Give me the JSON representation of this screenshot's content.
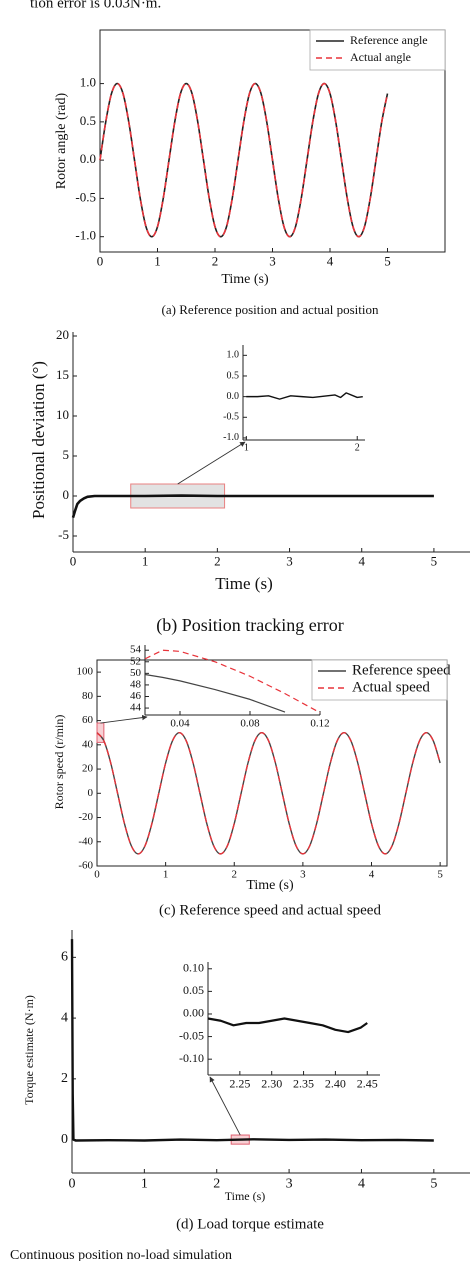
{
  "header_text": "tion error is 0.03N·m.",
  "footer_text": "Continuous position no-load simulation",
  "chart_data": [
    {
      "type": "line",
      "caption": "(a) Reference position and actual position",
      "xlabel": "Time (s)",
      "ylabel": "Rotor angle (rad)",
      "xlim": [
        0,
        6
      ],
      "ylim": [
        -1.2,
        1.7
      ],
      "xticks": [
        0,
        1,
        2,
        3,
        4,
        5
      ],
      "yticks": [
        {
          "value": -1,
          "label": "-1.0"
        },
        {
          "value": -0.5,
          "label": "-0.5"
        },
        {
          "value": 0,
          "label": "0.0"
        },
        {
          "value": 0.5,
          "label": "0.5"
        },
        {
          "value": 1,
          "label": "1.0"
        }
      ],
      "legend": "upper right",
      "x": [
        0,
        0.1,
        0.2,
        0.3,
        0.4,
        0.5,
        0.6,
        0.7,
        0.8,
        0.9,
        1,
        1.1,
        1.2,
        1.3,
        1.4,
        1.5,
        1.6,
        1.7,
        1.8,
        1.9,
        2,
        2.1,
        2.2,
        2.3,
        2.4,
        2.5,
        2.6,
        2.7,
        2.8,
        2.9,
        3,
        3.1,
        3.2,
        3.3,
        3.4,
        3.5,
        3.6,
        3.7,
        3.8,
        3.9,
        4,
        4.1,
        4.2,
        4.3,
        4.4,
        4.5,
        4.6,
        4.7,
        4.8,
        4.9,
        5
      ],
      "series": [
        {
          "name": "Reference angle",
          "color": "#222222",
          "dash": false,
          "values": [
            0,
            0.5,
            0.87,
            1,
            0.87,
            0.5,
            0,
            -0.5,
            -0.87,
            -1,
            -0.87,
            -0.5,
            0,
            0.5,
            0.87,
            1,
            0.87,
            0.5,
            0,
            -0.5,
            -0.87,
            -1,
            -0.87,
            -0.5,
            0,
            0.5,
            0.87,
            1,
            0.87,
            0.5,
            0,
            -0.5,
            -0.87,
            -1,
            -0.87,
            -0.5,
            0,
            0.5,
            0.87,
            1,
            0.87,
            0.5,
            0,
            -0.5,
            -0.87,
            -1,
            -0.87,
            -0.5,
            0,
            0.5,
            0.87
          ]
        },
        {
          "name": "Actual angle",
          "color": "#e8333a",
          "dash": true,
          "values": [
            0,
            0.5,
            0.87,
            1,
            0.87,
            0.5,
            0,
            -0.5,
            -0.87,
            -1,
            -0.87,
            -0.5,
            0,
            0.5,
            0.87,
            1,
            0.87,
            0.5,
            0,
            -0.5,
            -0.87,
            -1,
            -0.87,
            -0.5,
            0,
            0.5,
            0.87,
            1,
            0.87,
            0.5,
            0,
            -0.5,
            -0.87,
            -1,
            -0.87,
            -0.5,
            0,
            0.5,
            0.87,
            1,
            0.87,
            0.5,
            0,
            -0.5,
            -0.87,
            -1,
            -0.87,
            -0.5,
            0,
            0.5,
            0.87
          ]
        }
      ]
    },
    {
      "type": "line",
      "caption": "(b) Position tracking error",
      "xlabel": "Time (s)",
      "ylabel": "Positional deviation (°)",
      "xlim": [
        0,
        5.5
      ],
      "ylim": [
        -7,
        20.5
      ],
      "xticks": [
        0,
        1,
        2,
        3,
        4,
        5
      ],
      "yticks": [
        -5,
        0,
        5,
        10,
        15,
        20
      ],
      "x": [
        0,
        0.03,
        0.06,
        0.1,
        0.15,
        0.2,
        0.3,
        0.5,
        1,
        1.5,
        2,
        2.5,
        3,
        3.5,
        4,
        4.5,
        5
      ],
      "series": [
        {
          "color": "#111111",
          "dash": false,
          "values": [
            -2.7,
            -1.8,
            -1.0,
            -0.6,
            -0.3,
            -0.1,
            0,
            0,
            0,
            0.05,
            0,
            0,
            0,
            0,
            0,
            0,
            0
          ]
        }
      ],
      "highlight": {
        "x": [
          0.8,
          2.1
        ],
        "y": [
          -1.5,
          1.5
        ],
        "color": "#dddddd",
        "edge": "#e88080"
      },
      "inset": {
        "type": "line",
        "xlim": [
          0.97,
          2.07
        ],
        "ylim": [
          -1.05,
          1.25
        ],
        "xticks": [
          1,
          2
        ],
        "yticks": [
          {
            "value": -1,
            "label": "-1.0"
          },
          {
            "value": -0.5,
            "label": "-0.5"
          },
          {
            "value": 0,
            "label": "0.0"
          },
          {
            "value": 0.5,
            "label": "0.5"
          },
          {
            "value": 1,
            "label": "1.0"
          }
        ],
        "x": [
          1,
          1.1,
          1.2,
          1.3,
          1.4,
          1.5,
          1.6,
          1.7,
          1.8,
          1.85,
          1.9,
          2,
          2.05
        ],
        "series": [
          {
            "color": "#111111",
            "dash": false,
            "values": [
              0,
              0,
              0.02,
              -0.06,
              0.02,
              0,
              -0.02,
              0.01,
              0.04,
              -0.02,
              0.09,
              -0.02,
              0
            ]
          }
        ]
      }
    },
    {
      "type": "line",
      "caption": "(c) Reference speed and actual speed",
      "xlabel": "Time (s)",
      "ylabel": "Rotor speed (r/min)",
      "xlim": [
        0,
        5.1
      ],
      "ylim": [
        -60,
        110
      ],
      "xticks": [
        0,
        1,
        2,
        3,
        4,
        5
      ],
      "yticks": [
        -60,
        -40,
        -20,
        0,
        20,
        40,
        60,
        80,
        100
      ],
      "legend": "upper right",
      "x": [
        0,
        0.1,
        0.2,
        0.3,
        0.4,
        0.5,
        0.6,
        0.7,
        0.8,
        0.9,
        1,
        1.1,
        1.2,
        1.3,
        1.4,
        1.5,
        1.6,
        1.7,
        1.8,
        1.9,
        2,
        2.1,
        2.2,
        2.3,
        2.4,
        2.5,
        2.6,
        2.7,
        2.8,
        2.9,
        3,
        3.1,
        3.2,
        3.3,
        3.4,
        3.5,
        3.6,
        3.7,
        3.8,
        3.9,
        4,
        4.1,
        4.2,
        4.3,
        4.4,
        4.5,
        4.6,
        4.7,
        4.8,
        4.9,
        5
      ],
      "series": [
        {
          "name": "Reference speed",
          "color": "#444444",
          "dash": false,
          "values": [
            50,
            43.3,
            25,
            0,
            -25,
            -43.3,
            -50,
            -43.3,
            -25,
            0,
            25,
            43.3,
            50,
            43.3,
            25,
            0,
            -25,
            -43.3,
            -50,
            -43.3,
            -25,
            0,
            25,
            43.3,
            50,
            43.3,
            25,
            0,
            -25,
            -43.3,
            -50,
            -43.3,
            -25,
            0,
            25,
            43.3,
            50,
            43.3,
            25,
            0,
            -25,
            -43.3,
            -50,
            -43.3,
            -25,
            0,
            25,
            43.3,
            50,
            43.3,
            25
          ]
        },
        {
          "name": "Actual speed",
          "color": "#e8333a",
          "dash": true,
          "values": [
            50,
            43.3,
            25,
            0,
            -25,
            -43.3,
            -50,
            -43.3,
            -25,
            0,
            25,
            43.3,
            50,
            43.3,
            25,
            0,
            -25,
            -43.3,
            -50,
            -43.3,
            -25,
            0,
            25,
            43.3,
            50,
            43.3,
            25,
            0,
            -25,
            -43.3,
            -50,
            -43.3,
            -25,
            0,
            25,
            43.3,
            50,
            43.3,
            25,
            0,
            -25,
            -43.3,
            -50,
            -43.3,
            -25,
            0,
            25,
            43.3,
            50,
            43.3,
            25
          ]
        }
      ],
      "highlight": {
        "x": [
          0,
          0.1
        ],
        "y": [
          42,
          58
        ],
        "color": "#f6c8cc",
        "edge": "#e06070"
      },
      "inset": {
        "type": "line",
        "xlim": [
          0.02,
          0.12
        ],
        "ylim": [
          42.8,
          54.9
        ],
        "xticks": [
          0.04,
          0.08,
          0.12
        ],
        "yticks": [
          44,
          46,
          48,
          50,
          52,
          54
        ],
        "x": [
          0.02,
          0.03,
          0.04,
          0.06,
          0.08,
          0.1,
          0.12
        ],
        "series": [
          {
            "color": "#444444",
            "dash": false,
            "values": [
              49.8,
              49.3,
              48.7,
              47.2,
              45.5,
              43.3,
              null
            ]
          },
          {
            "color": "#e8333a",
            "dash": true,
            "values": [
              52.5,
              54,
              53.8,
              52,
              49.5,
              46.5,
              43.2
            ]
          }
        ]
      }
    },
    {
      "type": "line",
      "caption": "(d) Load torque estimate",
      "xlabel": "Time (s)",
      "ylabel": "Torque estimate (N·m)",
      "xlim": [
        0,
        5.5
      ],
      "ylim": [
        -1.1,
        6.9
      ],
      "xticks": [
        0,
        1,
        2,
        3,
        4,
        5
      ],
      "yticks": [
        0,
        2,
        4,
        6
      ],
      "x": [
        0,
        0.01,
        0.02,
        0.05,
        0.5,
        1,
        1.5,
        2,
        2.5,
        3,
        3.5,
        4,
        4.5,
        5
      ],
      "series": [
        {
          "color": "#111111",
          "dash": false,
          "values": [
            6.6,
            1.5,
            0,
            -0.03,
            -0.02,
            -0.03,
            0,
            -0.02,
            0.01,
            -0.01,
            0,
            -0.02,
            -0.01,
            -0.03
          ]
        }
      ],
      "highlight": {
        "x": [
          2.2,
          2.45
        ],
        "y": [
          -0.15,
          0.15
        ],
        "color": "#f6c8cc",
        "edge": "#e06070"
      },
      "inset": {
        "type": "line",
        "xlim": [
          2.2,
          2.47
        ],
        "ylim": [
          -0.135,
          0.115
        ],
        "xticks": [
          2.25,
          {
            "value": 2.3,
            "label": "2.30"
          },
          2.35,
          {
            "value": 2.4,
            "label": "2.40"
          },
          2.45
        ],
        "yticks": [
          {
            "value": -0.1,
            "label": "-0.10"
          },
          {
            "value": -0.05,
            "label": "-0.05"
          },
          {
            "value": 0,
            "label": "0.00"
          },
          {
            "value": 0.05,
            "label": "0.05"
          },
          {
            "value": 0.1,
            "label": "0.10"
          }
        ],
        "x": [
          2.2,
          2.22,
          2.24,
          2.26,
          2.28,
          2.3,
          2.32,
          2.34,
          2.36,
          2.38,
          2.4,
          2.42,
          2.44,
          2.45
        ],
        "series": [
          {
            "color": "#111111",
            "dash": false,
            "values": [
              -0.01,
              -0.015,
              -0.025,
              -0.02,
              -0.02,
              -0.015,
              -0.01,
              -0.015,
              -0.02,
              -0.025,
              -0.035,
              -0.04,
              -0.03,
              -0.02
            ]
          }
        ]
      }
    }
  ]
}
